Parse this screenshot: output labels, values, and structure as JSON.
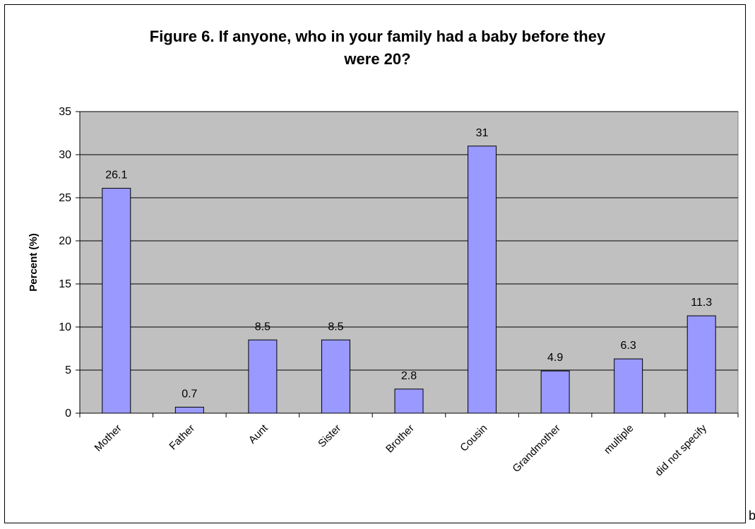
{
  "chart_data": {
    "type": "bar",
    "title_lines": [
      "Figure 6. If anyone, who in your family had a baby before they",
      "were 20?"
    ],
    "ylabel": "Percent (%)",
    "xlabel": "",
    "ylim": [
      0,
      35
    ],
    "yticks": [
      0,
      5,
      10,
      15,
      20,
      25,
      30,
      35
    ],
    "categories": [
      "Mother",
      "Father",
      "Aunt",
      "Sister",
      "Brother",
      "Cousin",
      "Grandmother",
      "multiple",
      "did not specify"
    ],
    "values": [
      26.1,
      0.7,
      8.5,
      8.5,
      2.8,
      31,
      4.9,
      6.3,
      11.3
    ],
    "data_labels": [
      "26.1",
      "0.7",
      "8.5",
      "8.5",
      "2.8",
      "31",
      "4.9",
      "6.3",
      "11.3"
    ],
    "grid": true,
    "legend": "none",
    "colors": {
      "bar": "#9999ff",
      "plot_bg": "#c0c0c0",
      "grid": "#000000"
    }
  },
  "trailing_char": "b"
}
